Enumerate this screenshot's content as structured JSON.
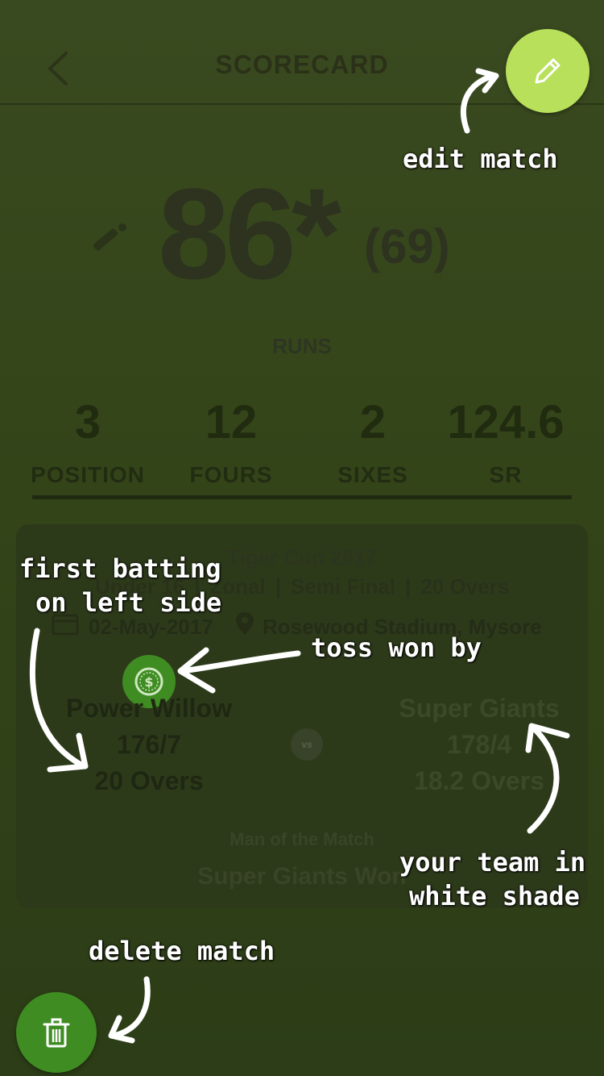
{
  "header": {
    "title": "SCORECARD"
  },
  "score": {
    "runs": "86*",
    "balls": "(69)",
    "label": "RUNS"
  },
  "stats": [
    {
      "value": "3",
      "label": "POSITION"
    },
    {
      "value": "12",
      "label": "FOURS"
    },
    {
      "value": "2",
      "label": "SIXES"
    },
    {
      "value": "124.6",
      "label": "SR"
    }
  ],
  "match": {
    "tournament": "Tiger Cup 2017",
    "category": "Under 16",
    "stage": "Zonal",
    "round": "Semi Final",
    "format": "20 Overs",
    "separator": "|",
    "date": "02-May-2017",
    "venue": "Rosewood Stadium, Mysore",
    "vs_label": "vs",
    "team_left": {
      "name": "Power Willow",
      "score": "176/7",
      "overs": "20 Overs"
    },
    "team_right": {
      "name": "Super Giants",
      "score": "178/4",
      "overs": "18.2 Overs"
    },
    "mom_label": "Man of the Match",
    "mom_value": "Super Giants Won"
  },
  "annotations": {
    "edit": "edit match",
    "first_batting_1": "first batting",
    "first_batting_2": "on left side",
    "toss": "toss won by",
    "your_team_1": "your team in",
    "your_team_2": "white shade",
    "delete": "delete match"
  },
  "colors": {
    "edit_fab": "#b8e05a",
    "delete_fab": "#3f8c22",
    "toss_badge": "#3f8c22"
  },
  "icons": {
    "back": "chevron-left-icon",
    "bat": "cricket-bat-icon",
    "calendar": "calendar-icon",
    "pin": "location-pin-icon",
    "toss": "coin-icon",
    "edit": "pencil-icon",
    "delete": "trash-icon"
  }
}
